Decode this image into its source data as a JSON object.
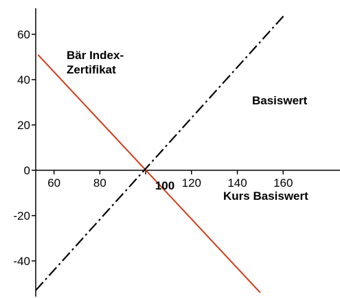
{
  "chart_data": {
    "type": "line",
    "xlim": [
      52,
      165
    ],
    "ylim": [
      -57,
      70
    ],
    "x_axis_at_y": 0,
    "y_axis_at_x": 52,
    "grid": false,
    "legend": "none",
    "x_ticks": [
      60,
      80,
      100,
      120,
      140,
      160
    ],
    "x_tick_labels": [
      "60",
      "80",
      "100",
      "120",
      "140",
      "160"
    ],
    "y_ticks": [
      60,
      40,
      20,
      0,
      -20,
      -40
    ],
    "y_tick_labels": [
      "60",
      "40",
      "20",
      "0",
      "-20",
      "-40"
    ],
    "series": [
      {
        "key": "bear",
        "color": "#d03a1a",
        "style": "solid",
        "x": [
          53,
          150
        ],
        "y": [
          51,
          -54
        ]
      },
      {
        "key": "base",
        "color": "#000000",
        "style": "dashdot",
        "x": [
          52,
          161
        ],
        "y": [
          -53,
          69
        ]
      }
    ],
    "annotations": [
      {
        "key": "bear_label_1",
        "text": "Bär Index-"
      },
      {
        "key": "bear_label_2",
        "text": "Zertifikat"
      },
      {
        "key": "base_label",
        "text": "Basiswert"
      },
      {
        "key": "x_axis_label",
        "text": "Kurs Basiswert"
      },
      {
        "key": "hundred_label",
        "text": "100"
      }
    ]
  }
}
